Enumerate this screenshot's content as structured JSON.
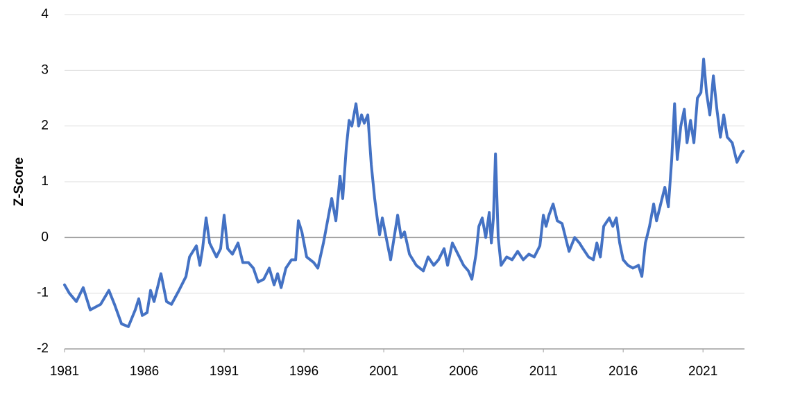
{
  "chart_data": {
    "type": "line",
    "y_label": "Z-Score",
    "xlim": [
      1981,
      2023.6
    ],
    "xticks": [
      1981,
      1986,
      1991,
      1996,
      2001,
      2006,
      2011,
      2016,
      2021
    ],
    "ylim": [
      -2,
      4
    ],
    "yticks": [
      -2,
      -1,
      0,
      1,
      2,
      3,
      4
    ],
    "grid": true,
    "x": [
      1981.0,
      1981.3,
      1981.74,
      1982.17,
      1982.61,
      1983.26,
      1983.78,
      1984.13,
      1984.57,
      1985.0,
      1985.43,
      1985.65,
      1985.87,
      1986.17,
      1986.39,
      1986.61,
      1987.04,
      1987.39,
      1987.7,
      1988.17,
      1988.61,
      1988.83,
      1989.26,
      1989.48,
      1989.65,
      1989.87,
      1990.09,
      1990.52,
      1990.78,
      1991.0,
      1991.22,
      1991.52,
      1991.87,
      1992.17,
      1992.52,
      1992.83,
      1993.13,
      1993.48,
      1993.83,
      1994.13,
      1994.35,
      1994.57,
      1994.87,
      1995.22,
      1995.48,
      1995.65,
      1995.87,
      1996.17,
      1996.61,
      1996.87,
      1997.22,
      1997.74,
      1998.0,
      1998.26,
      1998.43,
      1998.65,
      1998.83,
      1999.0,
      1999.26,
      1999.43,
      1999.61,
      1999.78,
      2000.0,
      2000.22,
      2000.43,
      2000.61,
      2000.74,
      2000.91,
      2001.22,
      2001.43,
      2001.65,
      2001.87,
      2002.09,
      2002.3,
      2002.61,
      2003.04,
      2003.48,
      2003.78,
      2004.13,
      2004.43,
      2004.78,
      2005.0,
      2005.3,
      2005.65,
      2006.0,
      2006.3,
      2006.52,
      2006.78,
      2006.96,
      2007.17,
      2007.39,
      2007.61,
      2007.74,
      2007.87,
      2008.0,
      2008.17,
      2008.35,
      2008.7,
      2009.04,
      2009.39,
      2009.74,
      2010.09,
      2010.43,
      2010.78,
      2011.0,
      2011.17,
      2011.35,
      2011.61,
      2011.87,
      2012.17,
      2012.39,
      2012.61,
      2012.96,
      2013.26,
      2013.48,
      2013.83,
      2014.13,
      2014.35,
      2014.57,
      2014.78,
      2015.13,
      2015.35,
      2015.57,
      2015.78,
      2016.0,
      2016.3,
      2016.61,
      2016.96,
      2017.17,
      2017.39,
      2017.65,
      2017.91,
      2018.09,
      2018.35,
      2018.61,
      2018.83,
      2019.04,
      2019.22,
      2019.39,
      2019.61,
      2019.83,
      2020.0,
      2020.22,
      2020.43,
      2020.65,
      2020.87,
      2021.04,
      2021.22,
      2021.43,
      2021.65,
      2021.87,
      2022.09,
      2022.3,
      2022.52,
      2022.83,
      2023.13,
      2023.39,
      2023.52
    ],
    "series": [
      {
        "name": "Z-Score",
        "color": "#4472c4",
        "values": [
          -0.85,
          -1.0,
          -1.15,
          -0.9,
          -1.3,
          -1.2,
          -0.95,
          -1.2,
          -1.55,
          -1.6,
          -1.3,
          -1.1,
          -1.4,
          -1.35,
          -0.95,
          -1.15,
          -0.65,
          -1.15,
          -1.2,
          -0.95,
          -0.7,
          -0.35,
          -0.15,
          -0.5,
          -0.2,
          0.35,
          -0.1,
          -0.35,
          -0.2,
          0.4,
          -0.2,
          -0.3,
          -0.1,
          -0.45,
          -0.45,
          -0.55,
          -0.8,
          -0.75,
          -0.55,
          -0.85,
          -0.65,
          -0.9,
          -0.55,
          -0.4,
          -0.4,
          0.3,
          0.1,
          -0.35,
          -0.45,
          -0.55,
          -0.1,
          0.7,
          0.3,
          1.1,
          0.7,
          1.6,
          2.1,
          2.0,
          2.4,
          2.0,
          2.2,
          2.05,
          2.2,
          1.3,
          0.7,
          0.3,
          0.05,
          0.35,
          -0.1,
          -0.4,
          0.0,
          0.4,
          0.0,
          0.1,
          -0.3,
          -0.5,
          -0.6,
          -0.35,
          -0.5,
          -0.4,
          -0.2,
          -0.5,
          -0.1,
          -0.3,
          -0.5,
          -0.6,
          -0.75,
          -0.3,
          0.2,
          0.35,
          0.0,
          0.45,
          -0.1,
          0.35,
          1.5,
          0.0,
          -0.5,
          -0.35,
          -0.4,
          -0.25,
          -0.4,
          -0.3,
          -0.35,
          -0.15,
          0.4,
          0.2,
          0.4,
          0.6,
          0.3,
          0.25,
          0.0,
          -0.25,
          0.0,
          -0.1,
          -0.2,
          -0.35,
          -0.4,
          -0.1,
          -0.35,
          0.2,
          0.35,
          0.2,
          0.35,
          -0.1,
          -0.4,
          -0.5,
          -0.55,
          -0.5,
          -0.7,
          -0.1,
          0.2,
          0.6,
          0.3,
          0.6,
          0.9,
          0.55,
          1.4,
          2.4,
          1.4,
          2.0,
          2.3,
          1.7,
          2.1,
          1.7,
          2.5,
          2.6,
          3.2,
          2.6,
          2.2,
          2.9,
          2.3,
          1.8,
          2.2,
          1.8,
          1.7,
          1.35,
          1.5,
          1.55
        ]
      }
    ]
  }
}
